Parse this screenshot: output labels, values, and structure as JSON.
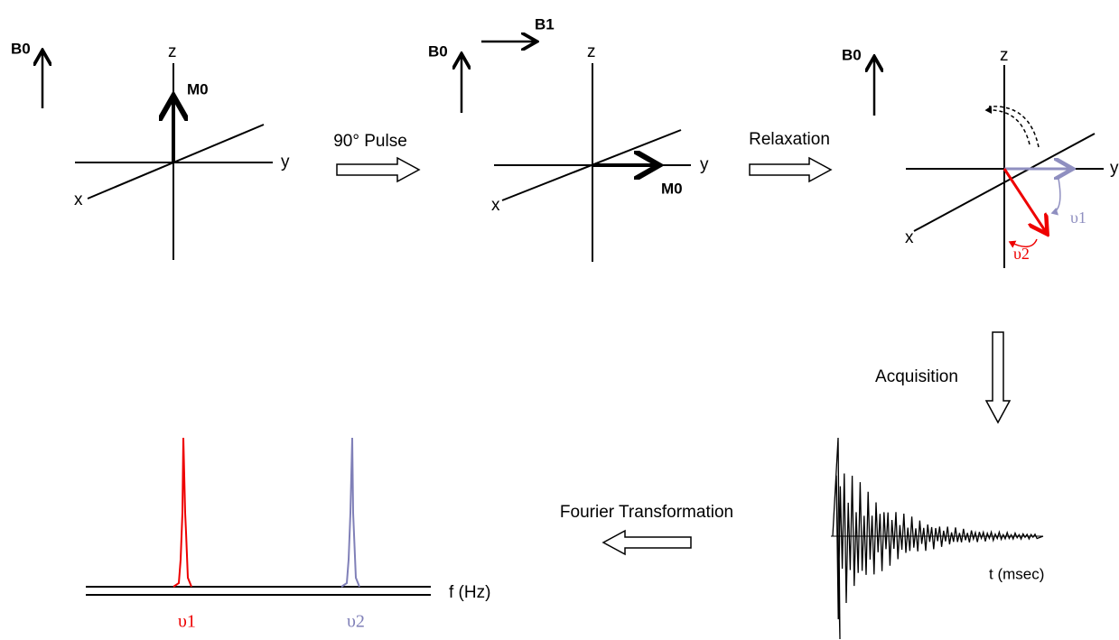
{
  "panels": [
    {
      "field": "B0",
      "axes": {
        "z": "z",
        "y": "y",
        "x": "x"
      },
      "vector": "M0"
    },
    {
      "field": "B0",
      "pulse_field": "B1",
      "axes": {
        "z": "z",
        "y": "y",
        "x": "x"
      },
      "vector": "M0"
    },
    {
      "field": "B0",
      "axes": {
        "z": "z",
        "y": "y",
        "x": "x"
      },
      "frequencies": [
        "υ1",
        "υ2"
      ]
    }
  ],
  "steps": [
    "90° Pulse",
    "Relaxation",
    "Acquisition",
    "Fourier Transformation"
  ],
  "fid": {
    "axis_label": "t (msec)"
  },
  "spectrum": {
    "axis_label": "f (Hz)",
    "peaks": [
      "υ1",
      "υ2"
    ]
  }
}
